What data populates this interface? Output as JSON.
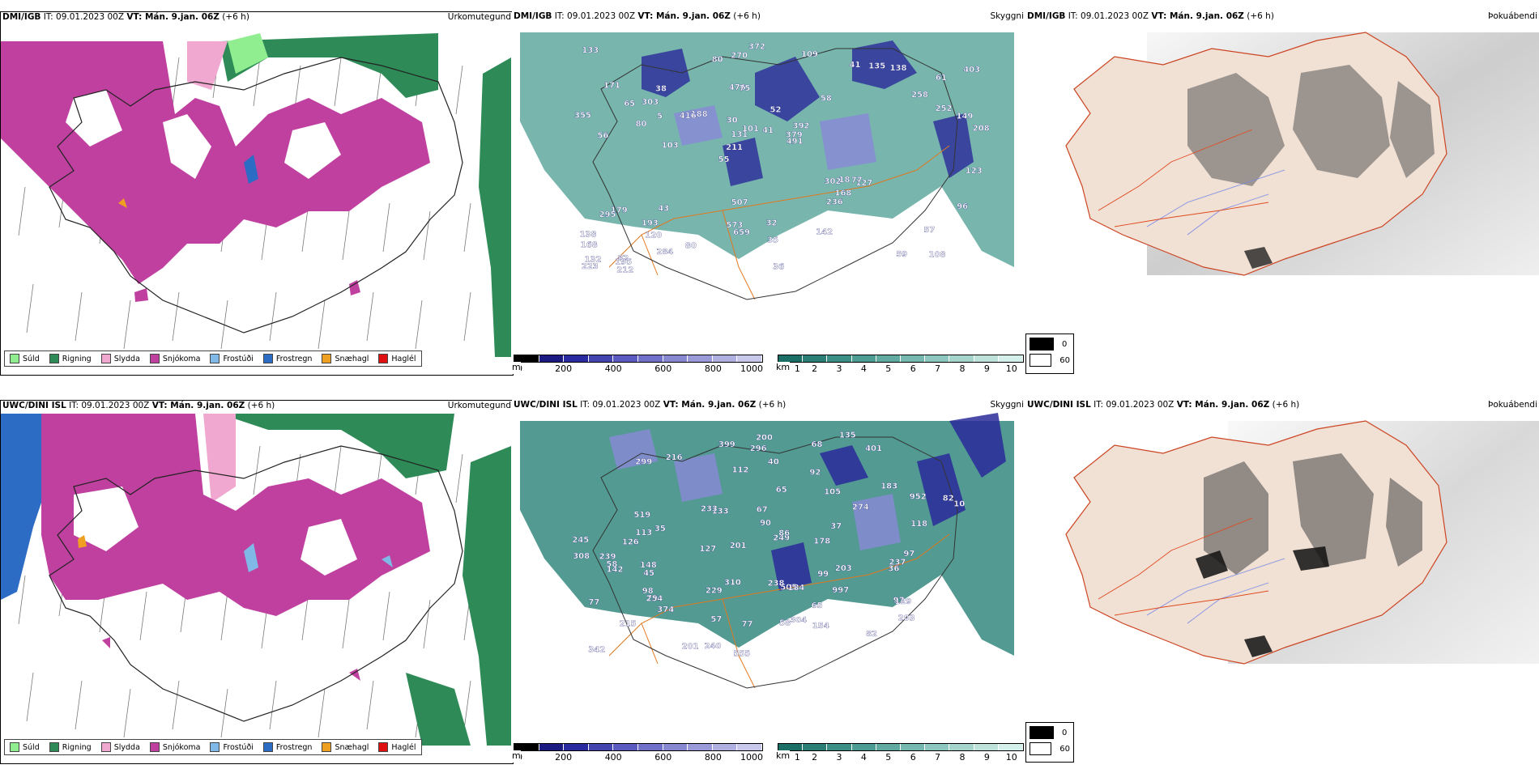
{
  "rows": [
    {
      "model": "DMI/IGB",
      "precip": {
        "it": "IT: 09.01.2023 00Z",
        "vt_label": "VT: Mán. 9.jan. 06Z",
        "lead": "(+6 h)",
        "title": "Úrkomutegund"
      },
      "snow": {
        "it": "IT: 09.01.2023 00Z",
        "vt_label": "VT: Mán. 9.jan. 06Z",
        "lead": "(+6 h)",
        "title": "Skyggni",
        "visibility_labels": [
          "108",
          "56",
          "61",
          "55",
          "58",
          "82",
          "476",
          "52",
          "179",
          "188",
          "168",
          "120",
          "75",
          "392",
          "127",
          "171",
          "270",
          "208",
          "302",
          "252",
          "211",
          "573",
          "131",
          "38",
          "41",
          "43",
          "59",
          "57",
          "77",
          "36",
          "416",
          "80",
          "236",
          "284",
          "149",
          "379",
          "132",
          "659",
          "491",
          "295",
          "258",
          "403",
          "168",
          "142",
          "193",
          "212",
          "223",
          "32",
          "138",
          "372",
          "103",
          "355",
          "303",
          "135",
          "195",
          "109",
          "80",
          "101",
          "96",
          "507",
          "80",
          "18",
          "5",
          "138",
          "133",
          "65",
          "123",
          "30",
          "35",
          "41"
        ]
      },
      "cloud": {
        "it": "IT: 09.01.2023 00Z",
        "vt_label": "VT: Mán. 9.jan. 06Z",
        "lead": "(+6 h)",
        "title": "Þokuábendi"
      }
    },
    {
      "model": "UWC/DINI ISL",
      "precip": {
        "it": "IT: 09.01.2023 00Z",
        "vt_label": "VT: Mán. 9.jan. 06Z",
        "lead": "(+6 h)",
        "title": "Úrkomutegund"
      },
      "snow": {
        "it": "IT: 09.01.2023 00Z",
        "vt_label": "VT: Mán. 9.jan. 06Z",
        "lead": "(+6 h)",
        "title": "Skyggni",
        "visibility_labels": [
          "215",
          "401",
          "216",
          "183",
          "505",
          "35",
          "45",
          "79",
          "952",
          "274",
          "239",
          "200",
          "997",
          "249",
          "555",
          "399",
          "203",
          "245",
          "254",
          "240",
          "154",
          "296",
          "112",
          "86",
          "90",
          "57",
          "58",
          "68",
          "65",
          "203",
          "519",
          "374",
          "304",
          "238",
          "129",
          "142",
          "82",
          "178",
          "105",
          "237",
          "10",
          "40",
          "77",
          "148",
          "308",
          "113",
          "99",
          "58",
          "229",
          "65",
          "133",
          "201",
          "67",
          "118",
          "127",
          "184",
          "233",
          "97",
          "299",
          "126",
          "342",
          "135",
          "92",
          "201",
          "310",
          "77",
          "98",
          "37",
          "97",
          "82",
          "36"
        ]
      },
      "cloud": {
        "it": "IT: 09.01.2023 00Z",
        "vt_label": "VT: Mán. 9.jan. 06Z",
        "lead": "(+6 h)",
        "title": "Þokuábendi"
      }
    }
  ],
  "precip_legend": [
    {
      "label": "Súld",
      "color": "#90ee90"
    },
    {
      "label": "Rigning",
      "color": "#2e8b57"
    },
    {
      "label": "Slydda",
      "color": "#f0a8d0"
    },
    {
      "label": "Snjókoma",
      "color": "#c040a0"
    },
    {
      "label": "Frostúði",
      "color": "#80b8e8"
    },
    {
      "label": "Frostregn",
      "color": "#2c6cc4"
    },
    {
      "label": "Snæhagl",
      "color": "#f0a020"
    },
    {
      "label": "Haglél",
      "color": "#e01010"
    }
  ],
  "scales": {
    "height": {
      "unit": "m",
      "ticks": [
        "0",
        "200",
        "400",
        "600",
        "800",
        "1000"
      ],
      "colors": [
        "#000000",
        "#1a1a80",
        "#2a2aa0",
        "#4444b0",
        "#5a5ac0",
        "#7070c8",
        "#8888d0",
        "#9a9ad8",
        "#b0b0e0",
        "#c8c8ec"
      ]
    },
    "visibility": {
      "unit": "km",
      "ticks": [
        "1",
        "2",
        "3",
        "4",
        "5",
        "6",
        "7",
        "8",
        "9",
        "10"
      ],
      "colors": [
        "#1a6e66",
        "#2a7e76",
        "#3a8e86",
        "#4c9c94",
        "#60aaa2",
        "#76b8b0",
        "#8cc6be",
        "#a4d4cc",
        "#bce2da",
        "#d4f0ea"
      ]
    }
  },
  "cloud_legend": [
    {
      "label": "0",
      "color": "#000000"
    },
    {
      "label": "60",
      "color": "#ffffff"
    }
  ]
}
